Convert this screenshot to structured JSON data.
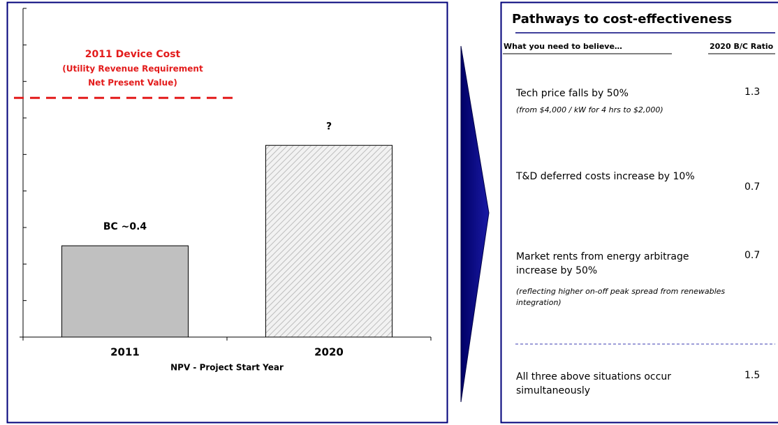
{
  "chart_data": {
    "type": "bar",
    "categories": [
      "2011",
      "2020"
    ],
    "values": [
      2.5,
      5.25
    ],
    "colors": [
      "#c0c0c0",
      "#e6e6e6"
    ],
    "hatched": [
      false,
      true
    ],
    "bar_labels": [
      "BC ~0.4",
      "?"
    ],
    "xlabel": "NPV - Project Start Year",
    "ylim": [
      0,
      9
    ],
    "yticks": [
      0,
      1,
      2,
      3,
      4,
      5,
      6,
      7,
      8,
      9
    ],
    "ref_line": {
      "value": 6.55,
      "color": "#e31b1b",
      "label": [
        "2011 Device Cost",
        "(Utility Revenue Requirement",
        "Net Present Value)"
      ]
    }
  },
  "pathways": {
    "title": "Pathways to cost-effectiveness",
    "header": [
      "What you need to believe…",
      "2020 B/C Ratio"
    ],
    "items": [
      {
        "text": "Tech price falls by 50%",
        "note": "(from $4,000 / kW for 4 hrs to $2,000)",
        "ratio": "1.3"
      },
      {
        "text": "T&D deferred costs increase by 10%",
        "ratio": "0.7"
      },
      {
        "text": "Market rents from energy arbitrage increase by 50%",
        "note": "(reflecting higher on-off peak spread from renewables integration)",
        "ratio": "0.7"
      },
      {
        "text": "All three above situations occur simultaneously",
        "ratio": "1.5"
      }
    ]
  }
}
